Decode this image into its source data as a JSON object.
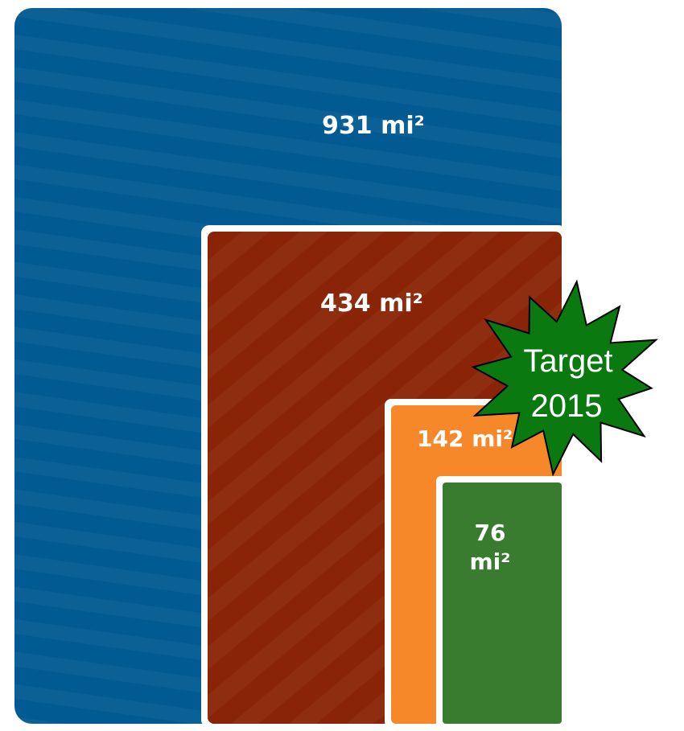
{
  "chart_data": {
    "type": "area",
    "values": [
      931,
      434,
      142,
      76
    ],
    "labels": [
      "931 mi²",
      "434 mi²",
      "142 mi²",
      "76 mi²"
    ],
    "colors": [
      "#025a92",
      "#8a2406",
      "#f6882a",
      "#3a7c2f"
    ],
    "annotation": {
      "line1": "Target",
      "line2": "2015",
      "color": "#0a7a10"
    }
  }
}
